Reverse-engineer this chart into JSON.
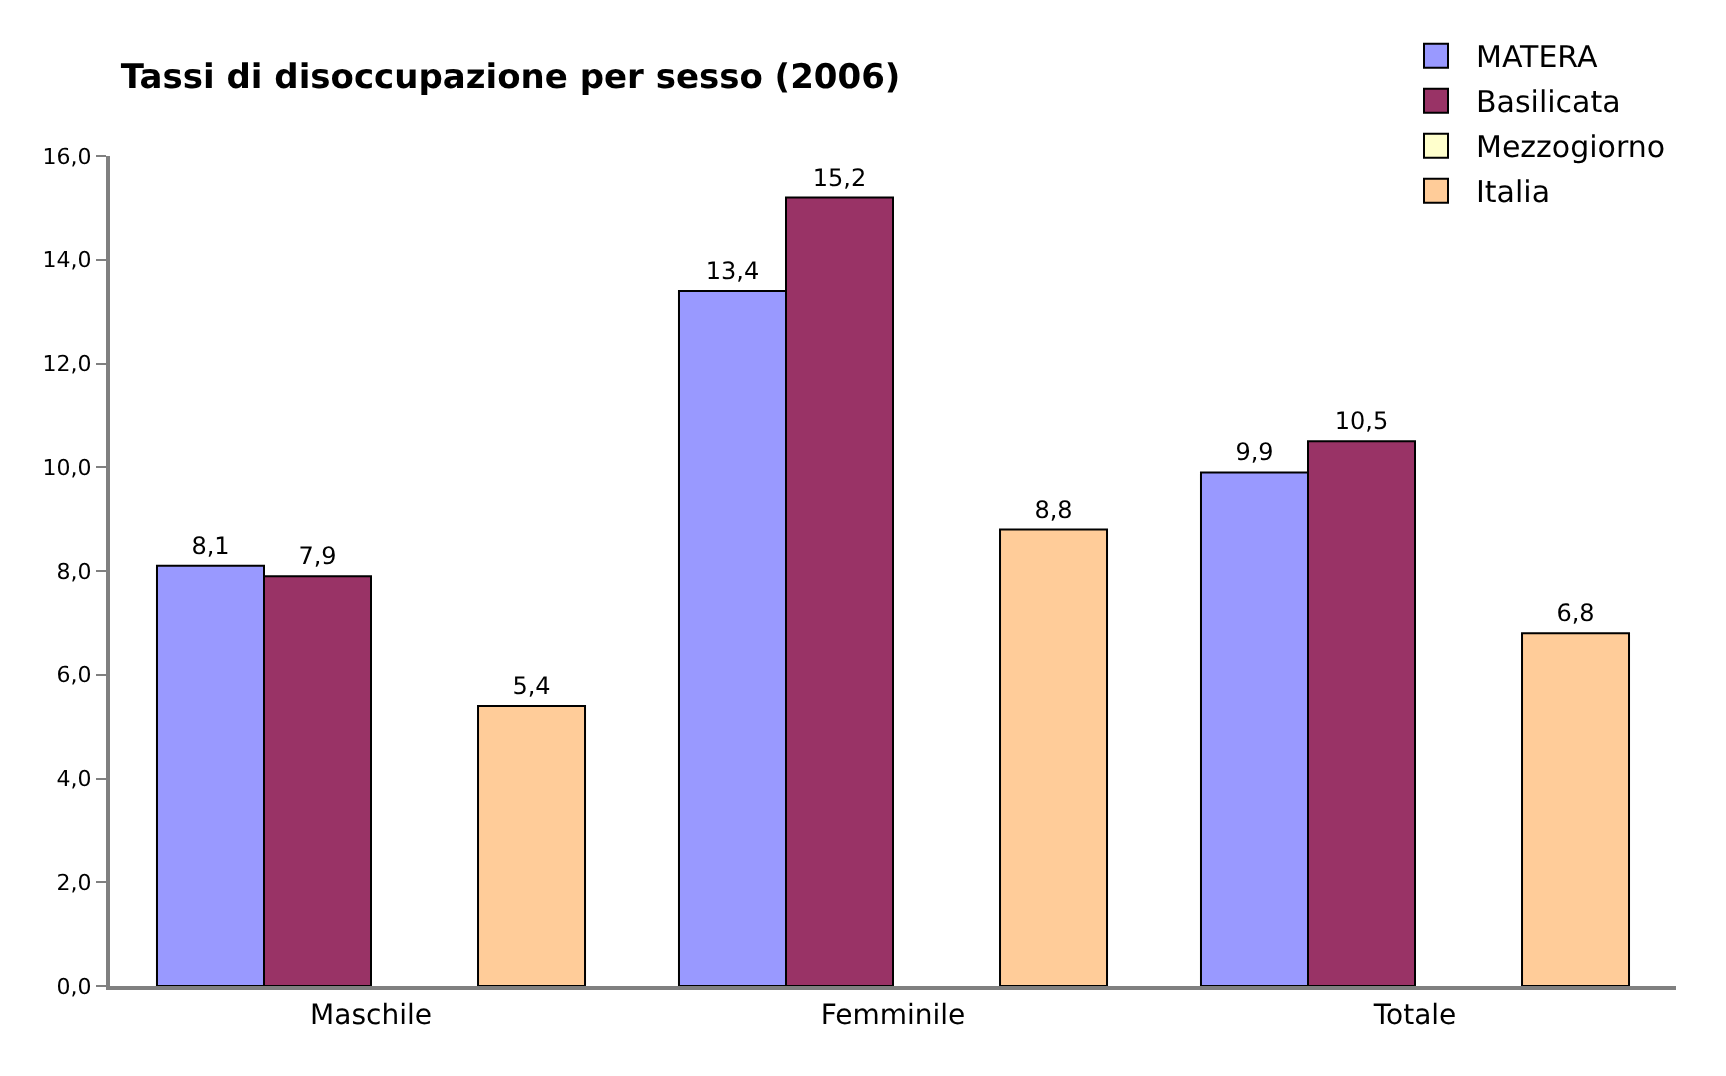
{
  "chart_data": {
    "type": "bar",
    "title": "Tassi di disoccupazione per sesso (2006)",
    "categories": [
      "Maschile",
      "Femminile",
      "Totale"
    ],
    "series": [
      {
        "name": "MATERA",
        "color": "#9999ff",
        "values": [
          8.1,
          13.4,
          9.9
        ],
        "value_labels": [
          "8,1",
          "13,4",
          "9,9"
        ]
      },
      {
        "name": "Basilicata",
        "color": "#993366",
        "values": [
          7.9,
          15.2,
          10.5
        ],
        "value_labels": [
          "7,9",
          "15,2",
          "10,5"
        ]
      },
      {
        "name": "Mezzogiorno",
        "color": "#ffffcc",
        "values": [
          null,
          null,
          null
        ],
        "value_labels": [
          null,
          null,
          null
        ]
      },
      {
        "name": "Italia",
        "color": "#ffcc99",
        "values": [
          5.4,
          8.8,
          6.8
        ],
        "value_labels": [
          "5,4",
          "8,8",
          "6,8"
        ]
      }
    ],
    "ylim": [
      0,
      16
    ],
    "yticks": [
      {
        "value": 0,
        "label": "0,0"
      },
      {
        "value": 2,
        "label": "2,0"
      },
      {
        "value": 4,
        "label": "4,0"
      },
      {
        "value": 6,
        "label": "6,0"
      },
      {
        "value": 8,
        "label": "8,0"
      },
      {
        "value": 10,
        "label": "10,0"
      },
      {
        "value": 12,
        "label": "12,0"
      },
      {
        "value": 14,
        "label": "14,0"
      },
      {
        "value": 16,
        "label": "16,0"
      }
    ],
    "legend": "top right"
  }
}
